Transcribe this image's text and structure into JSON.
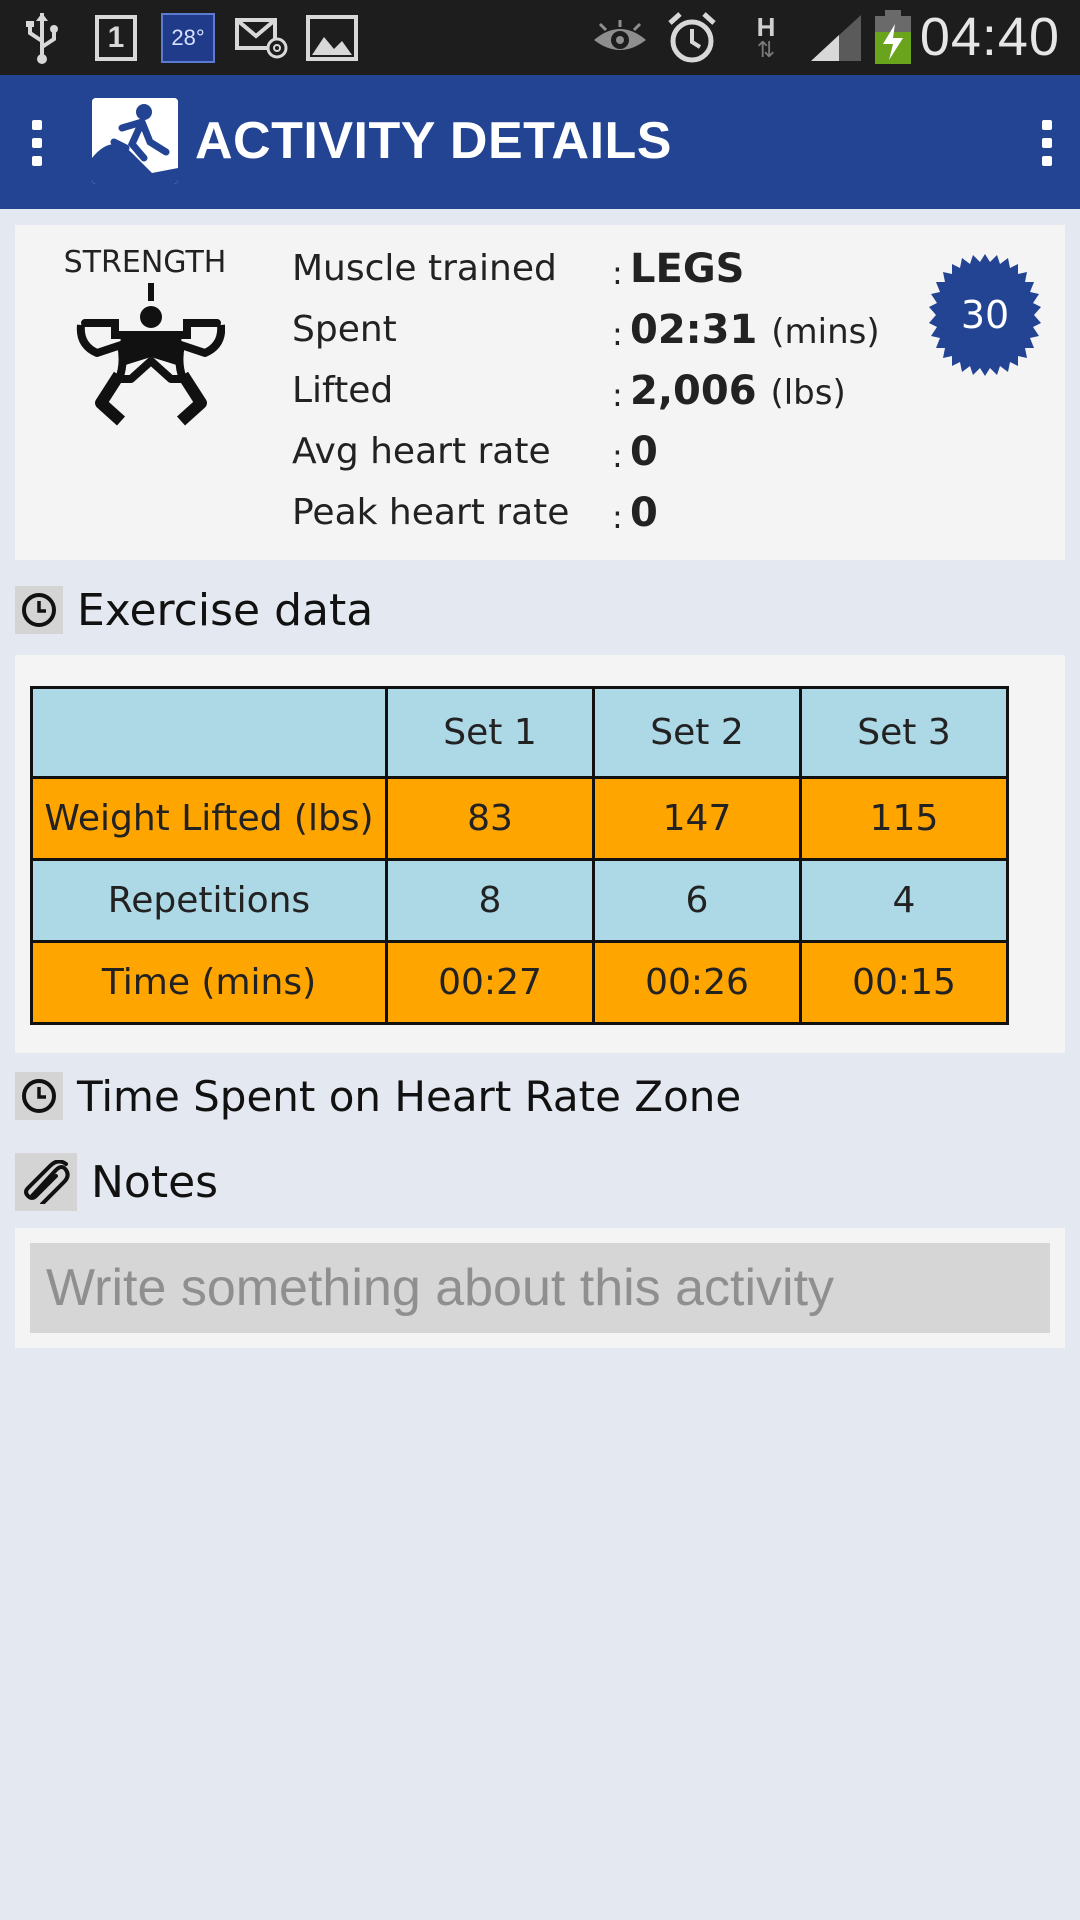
{
  "status_bar": {
    "time": "04:40",
    "calendar_day": "1",
    "weather_temp": "28°",
    "network_type": "H",
    "icons": [
      "usb-icon",
      "calendar-icon",
      "weather-icon",
      "email-icon",
      "image-icon",
      "eye-icon",
      "alarm-icon",
      "network-h-icon",
      "signal-icon",
      "battery-charging-icon"
    ]
  },
  "app_bar": {
    "title": "ACTIVITY DETAILS",
    "color": "#234393"
  },
  "summary": {
    "activity_type": "STRENGTH",
    "badge": "30",
    "fields": [
      {
        "label": "Muscle trained",
        "colon": ":",
        "value": "LEGS",
        "unit": ""
      },
      {
        "label": "Spent",
        "colon": ":",
        "value": "02:31",
        "unit": "(mins)"
      },
      {
        "label": "Lifted",
        "colon": ":",
        "value": "2,006",
        "unit": "(lbs)"
      },
      {
        "label": "Avg heart rate",
        "colon": ":",
        "value": "0",
        "unit": ""
      },
      {
        "label": "Peak heart rate",
        "colon": ":",
        "value": "0",
        "unit": ""
      }
    ]
  },
  "exercise_section": {
    "title": "Exercise data",
    "headers": [
      "",
      "Set 1",
      "Set 2",
      "Set 3"
    ],
    "rows": [
      {
        "label": "Weight Lifted (lbs)",
        "values": [
          "83",
          "147",
          "115"
        ]
      },
      {
        "label": "Repetitions",
        "values": [
          "8",
          "6",
          "4"
        ]
      },
      {
        "label": "Time (mins)",
        "values": [
          "00:27",
          "00:26",
          "00:15"
        ]
      }
    ],
    "colors": {
      "header": "#add8e6",
      "odd": "#ffa500",
      "even": "#add8e6"
    }
  },
  "heart_rate_section": {
    "title": "Time Spent on Heart Rate Zone"
  },
  "notes_section": {
    "title": "Notes",
    "placeholder": "Write something about this activity",
    "value": ""
  }
}
